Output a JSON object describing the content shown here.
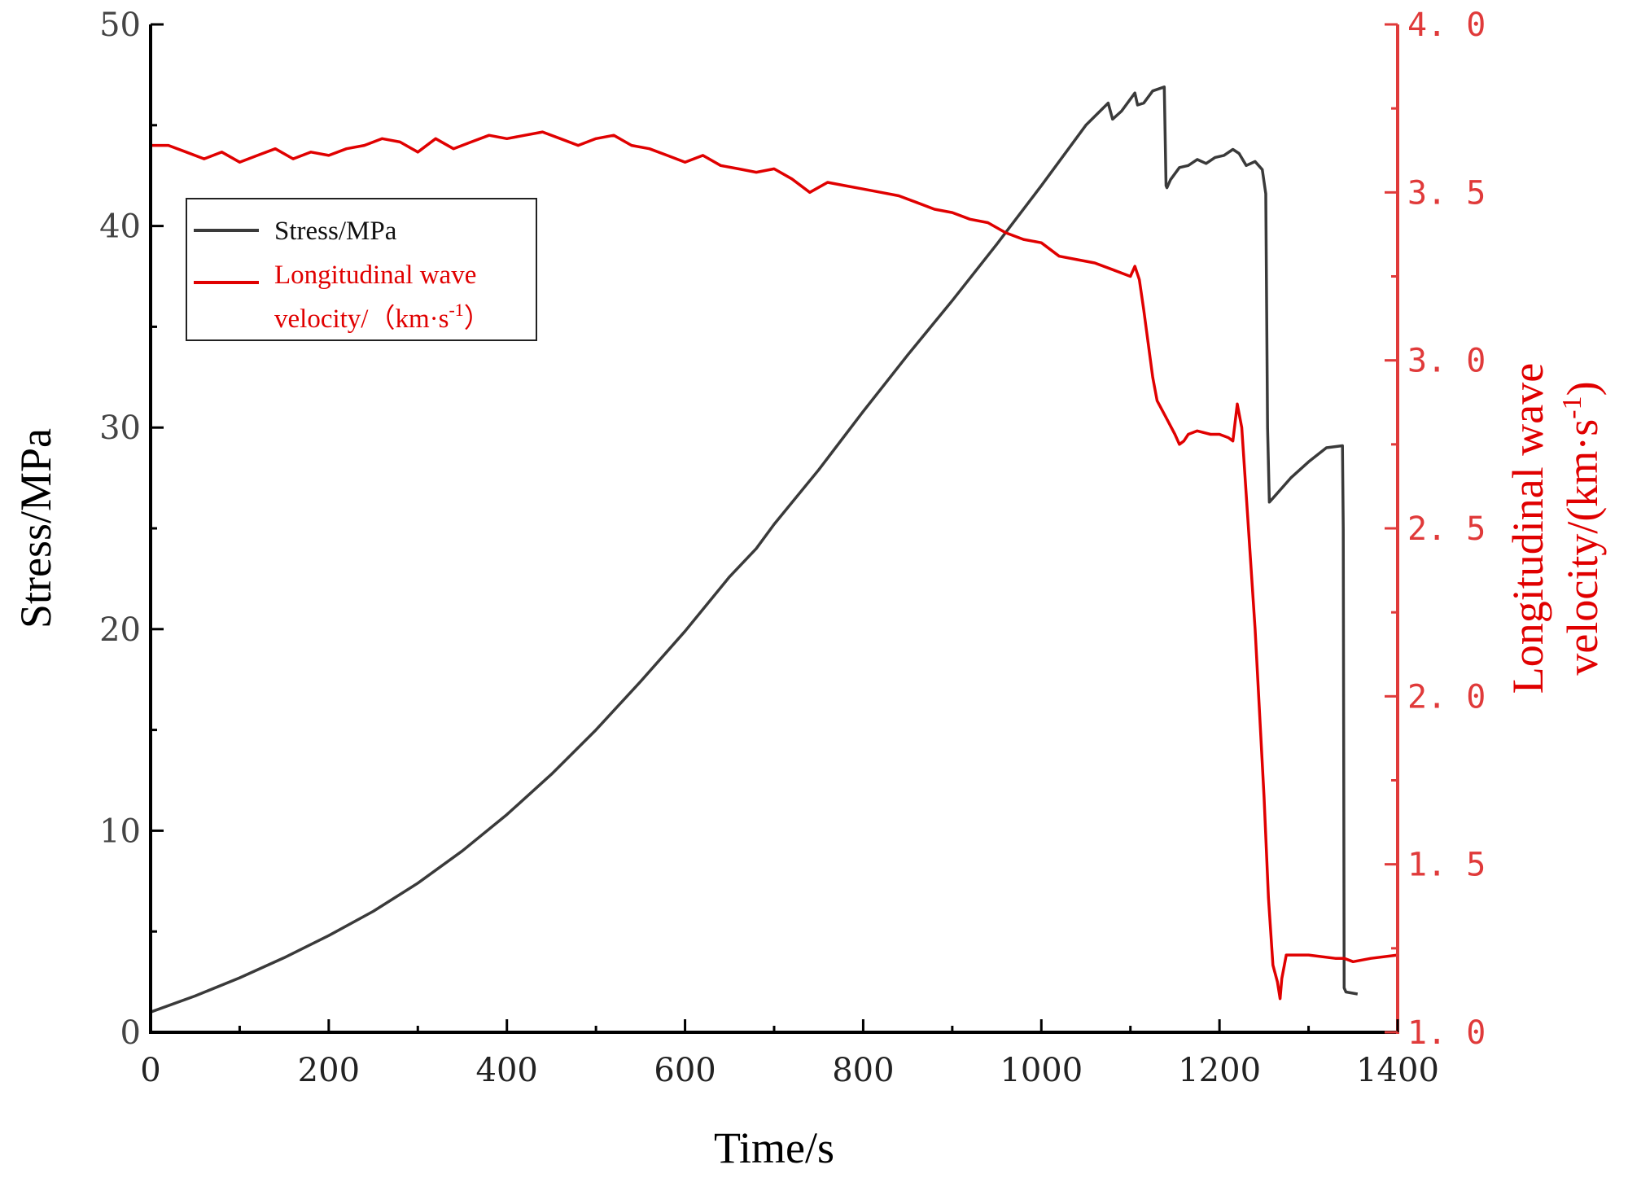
{
  "chart_data": {
    "type": "line",
    "title": "",
    "xlabel": "Time/s",
    "ylabel": "Stress/MPa",
    "y2label_line1": "Longitudinal wave",
    "y2label_line2": "velocity/(km·s",
    "y2label_sup": "-1",
    "y2label_close": ")",
    "xlim": [
      0,
      1400
    ],
    "ylim": [
      0,
      50
    ],
    "y2lim": [
      1.0,
      4.0
    ],
    "x_ticks": [
      "0",
      "200",
      "400",
      "600",
      "800",
      "1000",
      "1200",
      "1400"
    ],
    "y_ticks": [
      "0",
      "10",
      "20",
      "30",
      "40",
      "50"
    ],
    "y2_ticks": [
      "1. 0",
      "1. 5",
      "2. 0",
      "2. 5",
      "3. 0",
      "3. 5",
      "4. 0"
    ],
    "legend": {
      "position": "upper-left",
      "stress_label": "Stress/MPa",
      "velocity_label_line1": "Longitudinal wave",
      "velocity_label_line2": "velocity/（km·s",
      "velocity_label_sup": "-1",
      "velocity_label_close": "）"
    },
    "colors": {
      "stress": "#3a3a3a",
      "velocity": "#e00000",
      "right_axis": "#e03a3a",
      "left_axis": "#000000"
    },
    "series": [
      {
        "name": "Stress/MPa",
        "axis": "left",
        "x": [
          0,
          50,
          100,
          150,
          200,
          250,
          300,
          350,
          400,
          450,
          500,
          550,
          600,
          650,
          680,
          700,
          750,
          800,
          850,
          900,
          950,
          1000,
          1050,
          1075,
          1080,
          1090,
          1105,
          1108,
          1115,
          1125,
          1138,
          1140,
          1141,
          1145,
          1155,
          1165,
          1175,
          1185,
          1195,
          1205,
          1215,
          1222,
          1230,
          1240,
          1248,
          1252,
          1254,
          1256,
          1260,
          1280,
          1300,
          1320,
          1338,
          1339,
          1340,
          1342,
          1355
        ],
        "values": [
          1.0,
          1.8,
          2.7,
          3.7,
          4.8,
          6.0,
          7.4,
          9.0,
          10.8,
          12.8,
          15.0,
          17.4,
          19.9,
          22.6,
          24.0,
          25.2,
          27.9,
          30.8,
          33.6,
          36.3,
          39.1,
          42.0,
          45.0,
          46.1,
          45.3,
          45.7,
          46.6,
          46.0,
          46.1,
          46.7,
          46.9,
          42.0,
          41.9,
          42.3,
          42.9,
          43.0,
          43.3,
          43.1,
          43.4,
          43.5,
          43.8,
          43.6,
          43.0,
          43.2,
          42.8,
          41.6,
          30.0,
          26.3,
          26.5,
          27.5,
          28.3,
          29.0,
          29.1,
          25.0,
          2.2,
          2.0,
          1.9
        ]
      },
      {
        "name": "Longitudinal wave velocity/(km·s-1)",
        "axis": "right",
        "x": [
          0,
          20,
          40,
          60,
          80,
          100,
          120,
          140,
          160,
          180,
          200,
          220,
          240,
          260,
          280,
          300,
          320,
          340,
          360,
          380,
          400,
          420,
          440,
          460,
          480,
          500,
          520,
          540,
          560,
          580,
          600,
          620,
          640,
          660,
          680,
          700,
          720,
          740,
          760,
          780,
          800,
          820,
          840,
          860,
          880,
          900,
          920,
          940,
          960,
          980,
          1000,
          1020,
          1040,
          1060,
          1080,
          1090,
          1100,
          1105,
          1110,
          1115,
          1120,
          1125,
          1130,
          1140,
          1150,
          1155,
          1160,
          1165,
          1175,
          1190,
          1200,
          1210,
          1215,
          1220,
          1225,
          1230,
          1240,
          1250,
          1255,
          1260,
          1265,
          1268,
          1270,
          1275,
          1300,
          1330,
          1340,
          1350,
          1370,
          1400
        ],
        "values": [
          3.64,
          3.64,
          3.62,
          3.6,
          3.62,
          3.59,
          3.61,
          3.63,
          3.6,
          3.62,
          3.61,
          3.63,
          3.64,
          3.66,
          3.65,
          3.62,
          3.66,
          3.63,
          3.65,
          3.67,
          3.66,
          3.67,
          3.68,
          3.66,
          3.64,
          3.66,
          3.67,
          3.64,
          3.63,
          3.61,
          3.59,
          3.61,
          3.58,
          3.57,
          3.56,
          3.57,
          3.54,
          3.5,
          3.53,
          3.52,
          3.51,
          3.5,
          3.49,
          3.47,
          3.45,
          3.44,
          3.42,
          3.41,
          3.38,
          3.36,
          3.35,
          3.31,
          3.3,
          3.29,
          3.27,
          3.26,
          3.25,
          3.28,
          3.24,
          3.15,
          3.05,
          2.95,
          2.88,
          2.83,
          2.78,
          2.75,
          2.76,
          2.78,
          2.79,
          2.78,
          2.78,
          2.77,
          2.76,
          2.87,
          2.8,
          2.6,
          2.2,
          1.7,
          1.4,
          1.2,
          1.15,
          1.1,
          1.16,
          1.23,
          1.23,
          1.22,
          1.22,
          1.21,
          1.22,
          1.23
        ]
      }
    ]
  }
}
